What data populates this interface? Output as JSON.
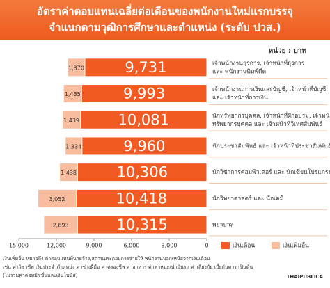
{
  "chart_data": {
    "type": "stacked_barh",
    "title": [
      "อัตราค่าตอบแทนเฉลี่ยต่อเดือนของพนักงานใหม่แรกบรรจุ",
      "จำแนกตามวุฒิการศึกษาและตำแหน่ง (ระดับ ปวส.)"
    ],
    "unit": "หน่วย : บาท",
    "categories": [
      [
        "เจ้าพนักงานธุรการ, เจ้าหน้าที่ธุรการ",
        "และ พนักงานพิมพ์ดีด"
      ],
      [
        "เจ้าพนักงานการเงินและบัญชี, เจ้าหน้าที่บัญชี,",
        "และ เจ้าหน้าที่การเงิน"
      ],
      [
        "นักทรัพยากรบุคคล, เจ้าหน้าที่ฝึกอบรม, เจ้าหน้าที่",
        "ทรัพยากรบุคคล และ เจ้าหน้าที่วิเทศสัมพันธ์"
      ],
      [
        "นักประชาสัมพันธ์ และ เจ้าหน้าที่ประชาสัมพันธ์"
      ],
      [
        "นักวิชาการคอมพิวเตอร์ และ นักเขียนโปรแกรม"
      ],
      [
        "นักวิทยาศาสตร์ และ นักเคมี"
      ],
      [
        "พยาบาล"
      ]
    ],
    "series": [
      {
        "name": "เงินเดือน",
        "color": "#f15a22",
        "values": [
          9731,
          9993,
          10081,
          9960,
          10306,
          10418,
          10315
        ],
        "value_labels": [
          "9,731",
          "9,993",
          "10,081",
          "9,960",
          "10,306",
          "10,418",
          "10,315"
        ]
      },
      {
        "name": "เงินเพิ่มอื่น",
        "color": "#f8bd9f",
        "values": [
          1370,
          1435,
          1439,
          1334,
          1438,
          3052,
          2693
        ],
        "value_labels": [
          "1,370",
          "1,435",
          "1,439",
          "1,334",
          "1,438",
          "3,052",
          "2,693"
        ]
      }
    ],
    "xlim": [
      0,
      15000
    ],
    "xticks": [
      {
        "value": 15000,
        "label": "15,000"
      },
      {
        "value": 12000,
        "label": "12,000"
      },
      {
        "value": 9000,
        "label": "9,000"
      },
      {
        "value": 6000,
        "label": "6,000"
      },
      {
        "value": 3000,
        "label": "3,000"
      },
      0
    ],
    "x_reversed": true,
    "footnote": [
      "เงินเพิ่มอื่น หมายถึง ค่าตอบแทนที่นายจ้าง/สถานประกอบการจ่ายให้ พนักงานนอกเหนือจากเงินเดือน",
      "เช่น ค่าวิชาชีพ เงินประจำตำแหน่ง ค่าช่างฝีมือ ค่าครองชีพ ค่าอาหาร ค่าพาหนะ/น้ำมันรถ ค่าเสี่ยงภัย เบี้ยกันดาร เป็นต้น",
      "(ไม่รวมค่าคอมมิชชั่นและเงินโบนัส)"
    ],
    "source": "THAIPUBLICA"
  }
}
